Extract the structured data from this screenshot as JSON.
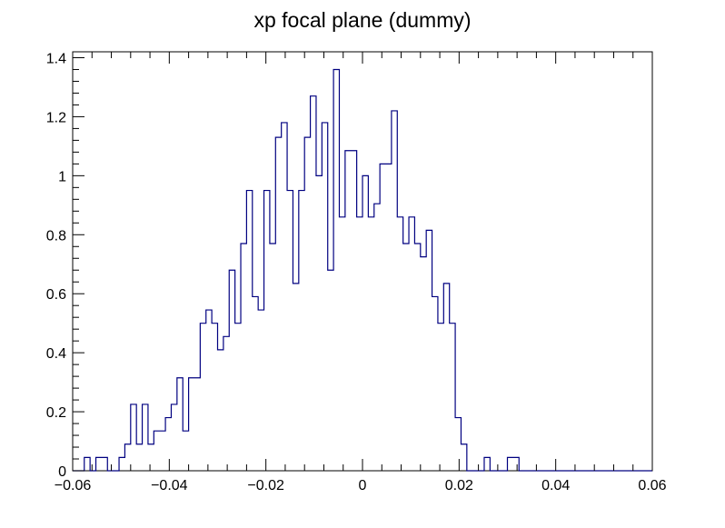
{
  "chart_data": {
    "type": "histogram",
    "title": "xp focal plane (dummy)",
    "xlabel": "",
    "ylabel": "",
    "xlim": [
      -0.06,
      0.06
    ],
    "ylim": [
      0,
      1.42
    ],
    "x_ticks": [
      -0.06,
      -0.04,
      -0.02,
      0,
      0.02,
      0.04,
      0.06
    ],
    "x_tick_labels": [
      "−0.06",
      "−0.04",
      "−0.02",
      "0",
      "0.02",
      "0.04",
      "0.06"
    ],
    "y_ticks": [
      0,
      0.2,
      0.4,
      0.6,
      0.8,
      1,
      1.2,
      1.4
    ],
    "y_tick_labels": [
      "0",
      "0.2",
      "0.4",
      "0.6",
      "0.8",
      "1",
      "1.2",
      "1.4"
    ],
    "line_color": "#000080",
    "bin_edges": [
      -0.06,
      0.06
    ],
    "bin_count": 100,
    "bin_values": [
      0,
      0,
      0.045,
      0,
      0.045,
      0.045,
      0,
      0,
      0.045,
      0.09,
      0.225,
      0.09,
      0.225,
      0.09,
      0.135,
      0.135,
      0.18,
      0.225,
      0.315,
      0.135,
      0.315,
      0.315,
      0.5,
      0.545,
      0.5,
      0.41,
      0.455,
      0.68,
      0.5,
      0.77,
      0.95,
      0.59,
      0.545,
      0.95,
      0.77,
      1.13,
      1.18,
      0.95,
      0.635,
      0.95,
      1.13,
      1.27,
      1.0,
      1.18,
      0.68,
      1.36,
      0.86,
      1.085,
      1.085,
      0.86,
      1.0,
      0.86,
      0.905,
      1.04,
      1.04,
      1.22,
      0.86,
      0.77,
      0.86,
      0.77,
      0.725,
      0.815,
      0.59,
      0.5,
      0.635,
      0.5,
      0.18,
      0.09,
      0,
      0,
      0,
      0.045,
      0,
      0,
      0,
      0.045,
      0.045,
      0,
      0,
      0,
      0,
      0,
      0,
      0,
      0,
      0,
      0,
      0,
      0,
      0,
      0,
      0,
      0,
      0,
      0,
      0,
      0,
      0,
      0,
      0
    ]
  }
}
